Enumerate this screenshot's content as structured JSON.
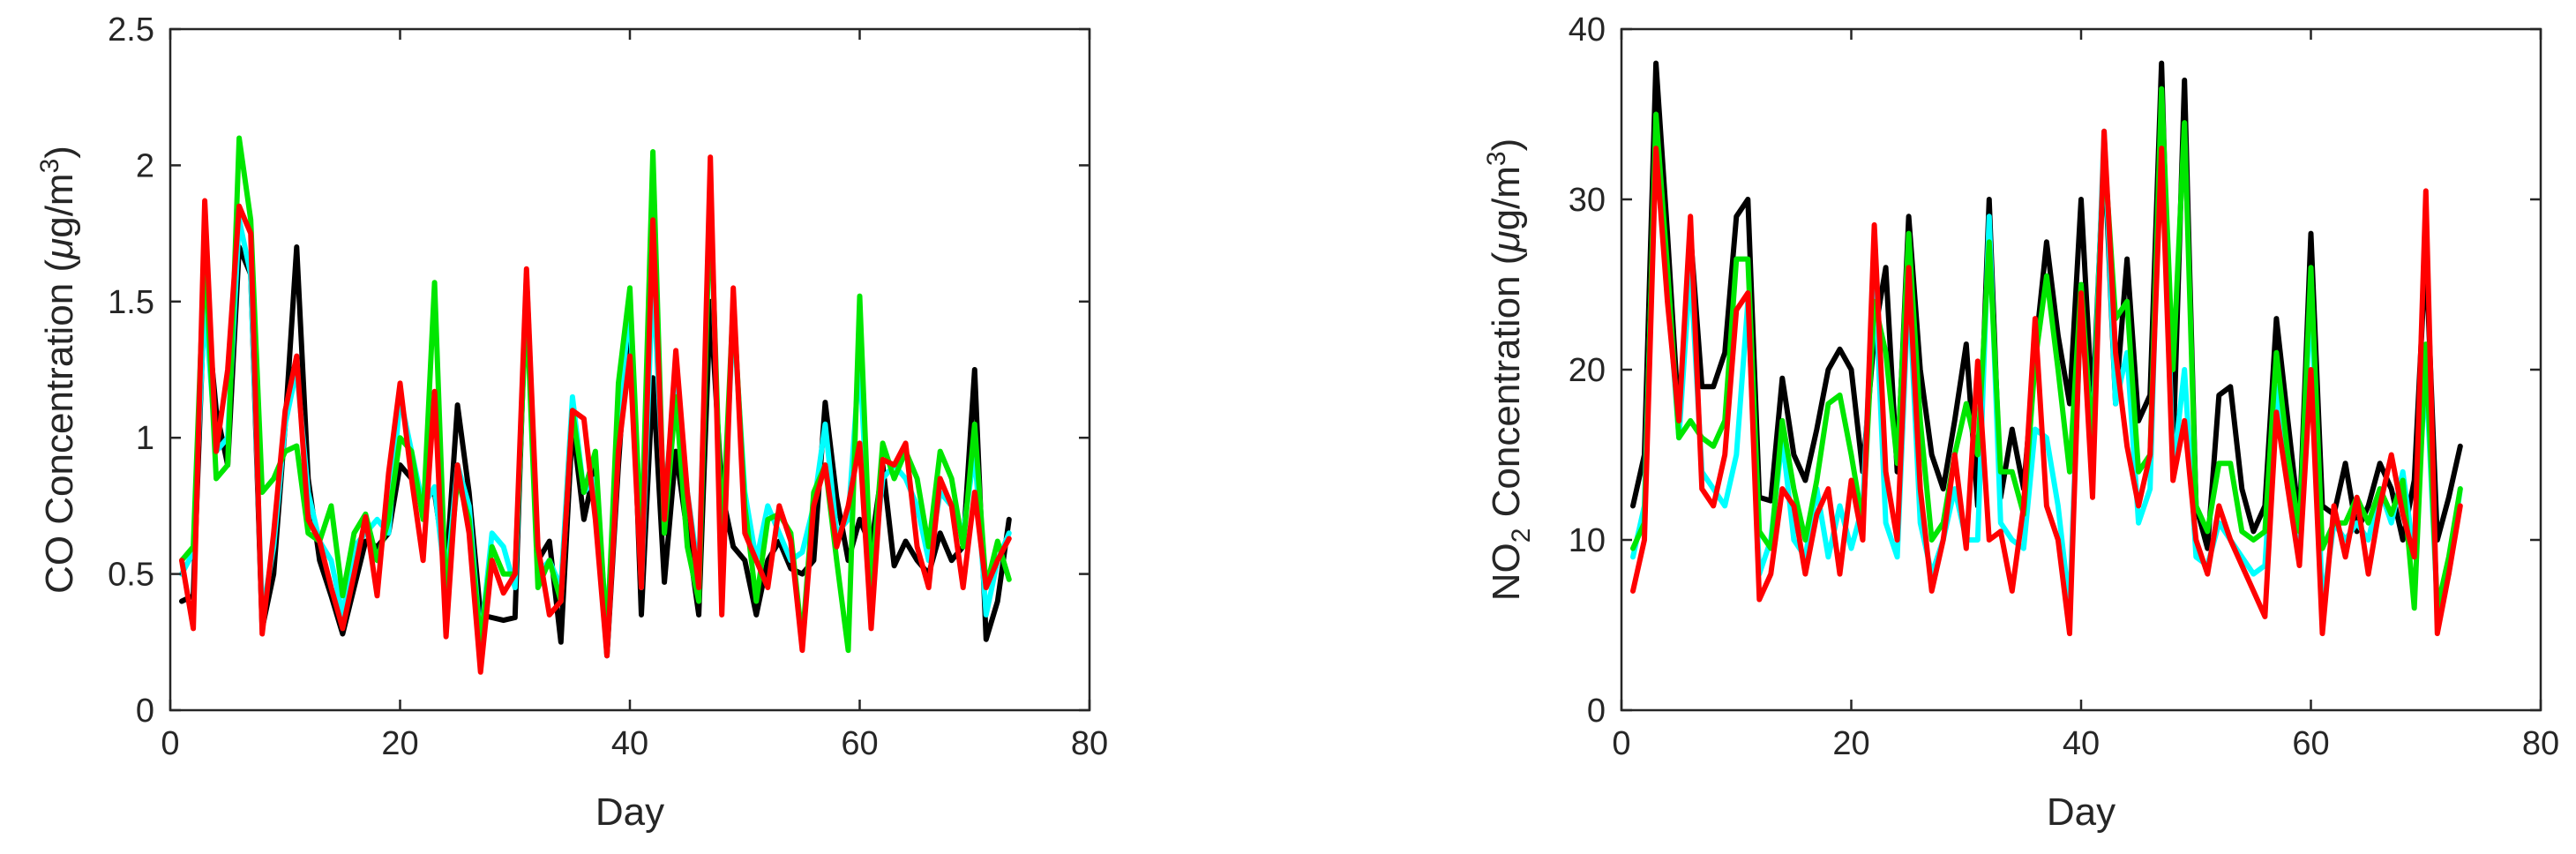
{
  "chart_data": [
    {
      "type": "line",
      "xlabel": "Day",
      "ylabel_parts": [
        "CO Concentration (",
        "μ",
        "g/m",
        "3",
        ")"
      ],
      "xlim": [
        0,
        80
      ],
      "ylim": [
        0,
        2.5
      ],
      "xticks": [
        0,
        20,
        40,
        60,
        80
      ],
      "yticks": [
        0,
        0.5,
        1,
        1.5,
        2,
        2.5
      ],
      "ytick_labels": [
        "0",
        "0.5",
        "1",
        "1.5",
        "2",
        "2.5"
      ],
      "x": [
        1,
        2,
        3,
        4,
        5,
        6,
        7,
        8,
        9,
        10,
        11,
        12,
        13,
        14,
        15,
        16,
        17,
        18,
        19,
        20,
        21,
        22,
        23,
        24,
        25,
        26,
        27,
        28,
        29,
        30,
        31,
        32,
        33,
        34,
        35,
        36,
        37,
        38,
        39,
        40,
        41,
        42,
        43,
        44,
        45,
        46,
        47,
        48,
        49,
        50,
        51,
        52,
        53,
        54,
        55,
        56,
        57,
        58,
        59,
        60,
        61,
        62,
        63,
        64,
        65,
        66,
        67,
        68,
        69,
        70,
        71,
        72,
        73
      ],
      "series": [
        {
          "color": "#000000",
          "values": [
            0.4,
            0.42,
            1.55,
            1.1,
            0.9,
            1.7,
            1.6,
            0.3,
            0.5,
            1.05,
            1.7,
            0.85,
            0.55,
            0.42,
            0.28,
            0.45,
            0.62,
            0.6,
            0.65,
            0.9,
            0.85,
            0.78,
            0.8,
            0.5,
            1.12,
            0.8,
            0.35,
            0.34,
            0.33,
            0.34,
            1.6,
            0.55,
            0.62,
            0.25,
            1.05,
            0.7,
            0.9,
            0.2,
            0.9,
            1.5,
            0.35,
            1.22,
            0.47,
            0.95,
            0.65,
            0.35,
            1.5,
            0.8,
            0.6,
            0.55,
            0.35,
            0.55,
            0.62,
            0.52,
            0.5,
            0.55,
            1.13,
            0.78,
            0.55,
            0.7,
            0.6,
            0.9,
            0.53,
            0.62,
            0.55,
            0.5,
            0.65,
            0.55,
            0.6,
            1.25,
            0.26,
            0.4,
            0.7
          ]
        },
        {
          "color": "#00ffff",
          "values": [
            0.5,
            0.58,
            1.5,
            0.95,
            1.0,
            1.8,
            1.6,
            0.35,
            0.6,
            1.05,
            1.25,
            0.8,
            0.62,
            0.55,
            0.35,
            0.6,
            0.65,
            0.7,
            0.65,
            1.15,
            0.95,
            0.75,
            0.82,
            0.45,
            0.9,
            0.75,
            0.25,
            0.65,
            0.6,
            0.45,
            1.55,
            0.5,
            0.55,
            0.45,
            1.15,
            0.8,
            0.85,
            0.3,
            1.05,
            1.5,
            0.45,
            1.6,
            0.75,
            1.25,
            0.8,
            0.5,
            1.9,
            0.55,
            1.45,
            0.8,
            0.55,
            0.75,
            0.65,
            0.55,
            0.58,
            0.75,
            1.05,
            0.65,
            0.7,
            1.3,
            0.45,
            0.85,
            0.9,
            0.85,
            0.75,
            0.55,
            0.8,
            0.75,
            0.65,
            0.95,
            0.35,
            0.55,
            0.65
          ]
        },
        {
          "color": "#00e600",
          "values": [
            0.55,
            0.6,
            1.7,
            0.85,
            0.9,
            2.1,
            1.8,
            0.8,
            0.85,
            0.95,
            0.97,
            0.65,
            0.62,
            0.75,
            0.42,
            0.65,
            0.72,
            0.55,
            0.7,
            1.0,
            0.95,
            0.7,
            1.57,
            0.4,
            0.85,
            0.7,
            0.25,
            0.6,
            0.5,
            0.5,
            1.5,
            0.45,
            0.55,
            0.4,
            1.1,
            0.8,
            0.95,
            0.25,
            1.2,
            1.55,
            0.6,
            2.05,
            0.65,
            1.15,
            0.6,
            0.4,
            1.9,
            0.6,
            1.5,
            0.75,
            0.4,
            0.7,
            0.72,
            0.65,
            0.25,
            0.8,
            0.9,
            0.55,
            0.22,
            1.52,
            0.45,
            0.98,
            0.85,
            0.95,
            0.85,
            0.6,
            0.95,
            0.85,
            0.6,
            1.05,
            0.45,
            0.62,
            0.48
          ]
        },
        {
          "color": "#ff0000",
          "values": [
            0.55,
            0.3,
            1.87,
            0.95,
            1.25,
            1.85,
            1.75,
            0.28,
            0.65,
            1.1,
            1.3,
            0.7,
            0.62,
            0.45,
            0.3,
            0.5,
            0.71,
            0.42,
            0.87,
            1.2,
            0.85,
            0.55,
            1.17,
            0.27,
            0.9,
            0.65,
            0.14,
            0.55,
            0.43,
            0.5,
            1.62,
            0.6,
            0.35,
            0.4,
            1.1,
            1.07,
            0.7,
            0.2,
            0.95,
            1.3,
            0.45,
            1.8,
            0.7,
            1.32,
            0.8,
            0.45,
            2.03,
            0.35,
            1.55,
            0.65,
            0.55,
            0.45,
            0.75,
            0.62,
            0.22,
            0.75,
            0.9,
            0.6,
            0.75,
            0.98,
            0.3,
            0.92,
            0.9,
            0.98,
            0.6,
            0.45,
            0.85,
            0.75,
            0.45,
            0.8,
            0.45,
            0.55,
            0.63
          ]
        }
      ]
    },
    {
      "type": "line",
      "xlabel": "Day",
      "ylabel_parts": [
        "NO",
        "2",
        " Concentration (",
        "μ",
        "g/m",
        "3",
        ")"
      ],
      "xlim": [
        0,
        80
      ],
      "ylim": [
        0,
        40
      ],
      "xticks": [
        0,
        20,
        40,
        60,
        80
      ],
      "yticks": [
        0,
        10,
        20,
        30,
        40
      ],
      "ytick_labels": [
        "0",
        "10",
        "20",
        "30",
        "40"
      ],
      "x": [
        1,
        2,
        3,
        4,
        5,
        6,
        7,
        8,
        9,
        10,
        11,
        12,
        13,
        14,
        15,
        16,
        17,
        18,
        19,
        20,
        21,
        22,
        23,
        24,
        25,
        26,
        27,
        28,
        29,
        30,
        31,
        32,
        33,
        34,
        35,
        36,
        37,
        38,
        39,
        40,
        41,
        42,
        43,
        44,
        45,
        46,
        47,
        48,
        49,
        50,
        51,
        52,
        53,
        54,
        55,
        56,
        57,
        58,
        59,
        60,
        61,
        62,
        63,
        64,
        65,
        66,
        67,
        68,
        69,
        70,
        71,
        72,
        73
      ],
      "series": [
        {
          "color": "#000000",
          "values": [
            12,
            15,
            38,
            28,
            17,
            28,
            19,
            19,
            21,
            29,
            30,
            12.5,
            12.3,
            19.5,
            15,
            13.5,
            16.5,
            20,
            21.2,
            20,
            14,
            22,
            26,
            14,
            29,
            20,
            15,
            13,
            17,
            21.5,
            12,
            30,
            12.5,
            16.5,
            13,
            21,
            27.5,
            22,
            18,
            30,
            17.5,
            33,
            18,
            26.5,
            17,
            18.5,
            38,
            15,
            37,
            12,
            9.5,
            18.5,
            19,
            13,
            10.5,
            12,
            23,
            17,
            11,
            28,
            12,
            11.5,
            14.5,
            10.5,
            12,
            14.5,
            13,
            10,
            13.5,
            27,
            10,
            12.5,
            15.5
          ]
        },
        {
          "color": "#00ffff",
          "values": [
            9,
            12,
            34,
            25,
            16,
            26,
            14,
            13,
            12,
            15,
            24,
            8,
            10,
            16,
            10,
            9,
            13,
            9,
            12,
            9.5,
            12,
            26,
            11,
            9,
            25,
            11,
            8,
            10,
            13,
            10,
            10,
            29,
            11,
            10,
            9.5,
            16.5,
            16,
            12,
            6,
            24,
            16,
            34,
            18,
            21,
            11,
            13,
            36,
            14,
            20,
            9,
            8.5,
            11,
            10,
            9,
            8,
            8.5,
            19,
            13,
            10,
            25,
            6,
            11,
            10,
            11,
            10,
            13,
            11,
            14,
            9,
            20,
            6,
            8,
            13
          ]
        },
        {
          "color": "#00e600",
          "values": [
            9.5,
            11,
            35,
            26,
            16,
            17,
            16,
            15.5,
            17,
            26.5,
            26.5,
            10.5,
            9.5,
            17,
            13,
            10,
            13.5,
            18,
            18.5,
            15,
            11,
            24,
            21,
            14.5,
            28,
            17,
            10,
            11,
            15,
            18,
            15,
            27.5,
            14,
            14,
            11.5,
            20.5,
            25.5,
            20,
            14,
            25,
            15.5,
            33,
            23,
            24,
            14,
            15,
            36.5,
            20,
            34.5,
            12,
            10.5,
            14.5,
            14.5,
            10.5,
            10,
            10.5,
            21,
            15,
            10.5,
            26,
            9.5,
            11,
            11,
            12.5,
            11,
            13,
            11.5,
            13.5,
            6,
            21.5,
            6,
            9,
            13
          ]
        },
        {
          "color": "#ff0000",
          "values": [
            7,
            10,
            33,
            24,
            17,
            29,
            13,
            12,
            15,
            23.5,
            24.5,
            6.5,
            8,
            13,
            12,
            8,
            11.5,
            13,
            8,
            13.5,
            10,
            28.5,
            14,
            10,
            26,
            13,
            7,
            10,
            15,
            9.5,
            20.5,
            10,
            10.5,
            7,
            12,
            23,
            12,
            10,
            4.5,
            24.5,
            12.5,
            34,
            21,
            15.5,
            12,
            15,
            33,
            13.5,
            17,
            10,
            8,
            12,
            10,
            8.5,
            7,
            5.5,
            17.5,
            13,
            8.5,
            20,
            4.5,
            12,
            9,
            12.5,
            8,
            12,
            15,
            11.5,
            9,
            30.5,
            4.5,
            8,
            12
          ]
        }
      ]
    }
  ]
}
